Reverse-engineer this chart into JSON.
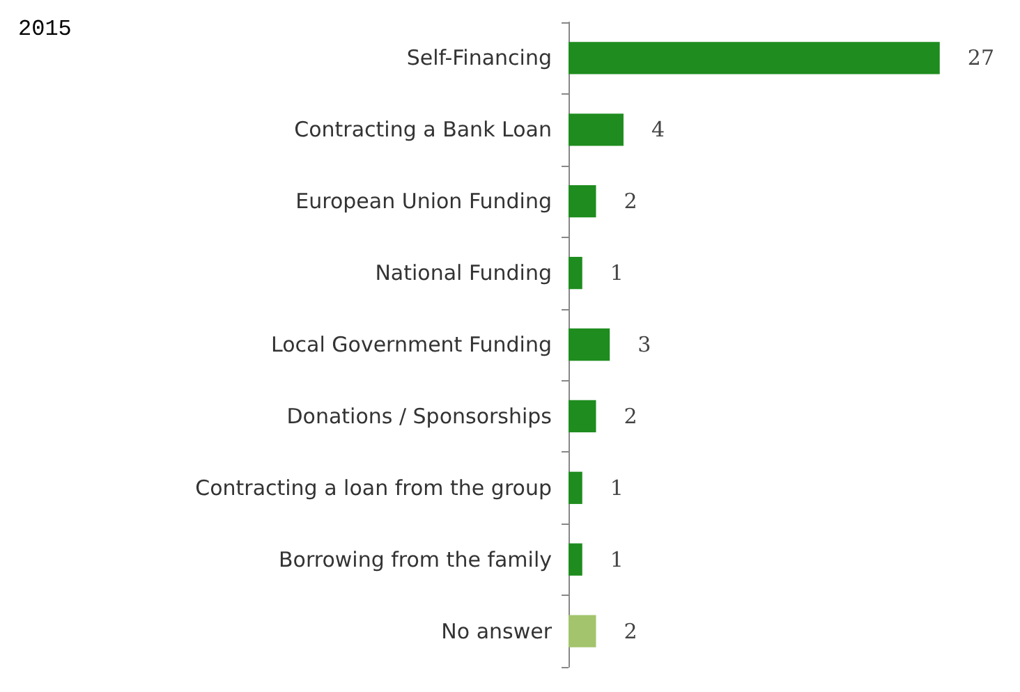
{
  "chart_data": {
    "type": "bar",
    "orientation": "horizontal",
    "title": "2015",
    "categories": [
      "Self-Financing",
      "Contracting a Bank Loan",
      "European Union Funding",
      "National Funding",
      "Local Government Funding",
      "Donations / Sponsorships",
      "Contracting a loan from the group",
      "Borrowing from the family",
      "No answer"
    ],
    "values": [
      27,
      4,
      2,
      1,
      3,
      2,
      1,
      1,
      2
    ],
    "colors": [
      "#1e8c1e",
      "#1e8c1e",
      "#1e8c1e",
      "#1e8c1e",
      "#1e8c1e",
      "#1e8c1e",
      "#1e8c1e",
      "#1e8c1e",
      "#a3c46c"
    ],
    "data_labels": true
  }
}
